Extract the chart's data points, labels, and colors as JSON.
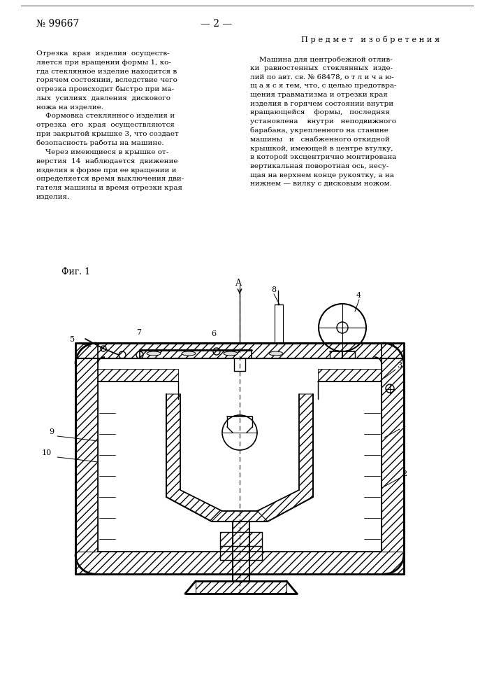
{
  "page_number": "№ 99667",
  "page_number2": "— 2 —",
  "left_column_text": "Отрезка  края  изделия  осуществ-\nляется при вращении формы 1, ко-\nгда стеклянное изделие находится в\nгорячем состоянии, вследствие чего\nотрезка происходит быстро при ма-\nлых  усилиях  давления  дискового\nножа на изделие.\n    Формовка стеклянного изделия и\nотрезка  его  края  осуществляются\nпри закрытой крышке 3, что создает\nбезопасность работы на машине.\n    Через имеющиеся в крышке от-\nверстия  14  наблюдается  движение\nизделия в форме при ее вращении и\nопределяется время выключения дви-\nгателя машины и время отрезки края\nизделия.",
  "right_heading": "П р е д м е т   и з о б р е т е н и я",
  "right_column_text": "    Машина для центробежной отлив-\nки  равностенных  стеклянных  изде-\nлий по авт. св. № 68478, о т л и ч а ю-\nщ а я с я тем, что, с целью предотвра-\nщения травматизма и отрезки края\nизделия в горячем состоянии внутри\nвращающейся    формы,   последняя\nустановлена    внутри   неподвижного\nбарабана, укрепленного на станине\nмашины   и   снабженного откидной\nкрышкой, имеющей в центре втулку,\nв которой эксцентрично монтирована\nвертикальная поворотная ось, несу-\nщая на верхнем конце рукоятку, а на\nнижнем — вилку с дисковым ножом.",
  "fig_label": "Фиг. 1",
  "bg_color": "#ffffff",
  "text_color": "#000000",
  "line_color": "#000000"
}
